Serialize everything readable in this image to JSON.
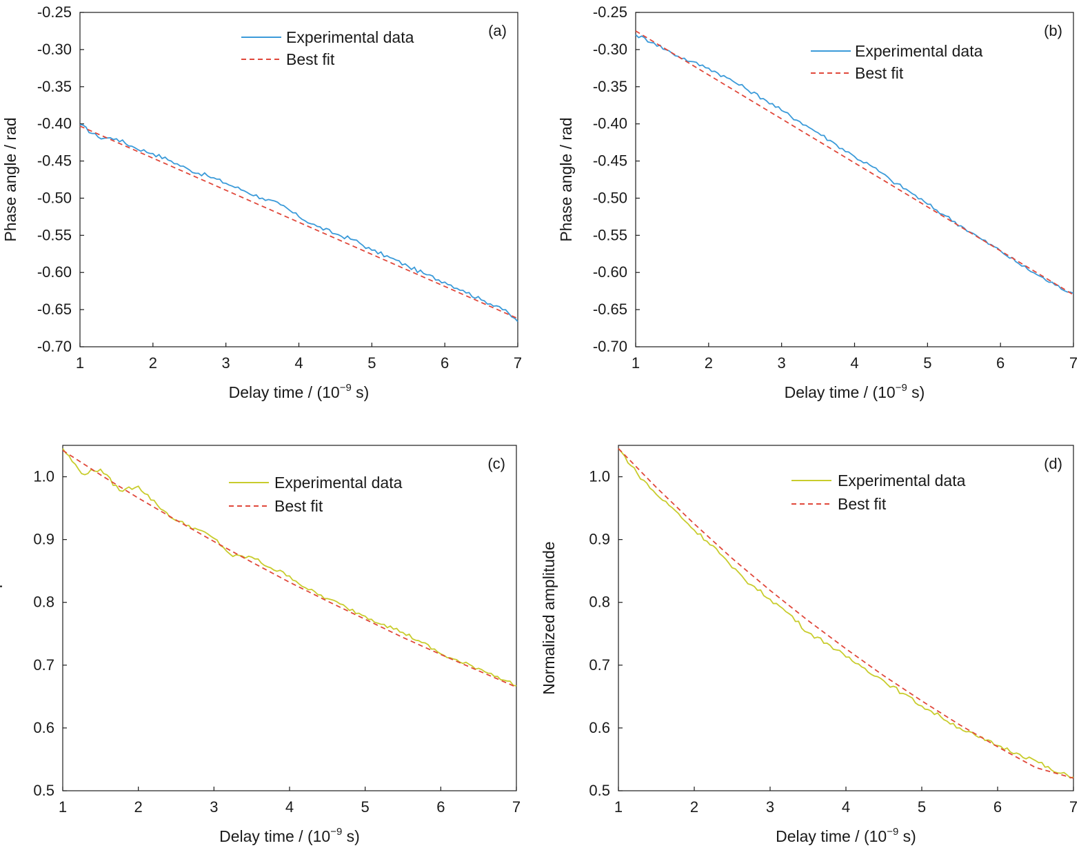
{
  "figure": {
    "colors": {
      "phase_series": "#3a9ad9",
      "amplitude_series": "#c8cc2c",
      "fit": "#e0473a",
      "axes": "#1a1a1a"
    }
  },
  "chart_data": [
    {
      "panel_label": "(a)",
      "type": "line",
      "xlabel": "Delay time / (10",
      "xlabel_exp": "−9",
      "xlabel_tail": " s)",
      "ylabel": "Phase angle / rad",
      "xlim": [
        1,
        7
      ],
      "ylim": [
        -0.7,
        -0.25
      ],
      "xticks": [
        1,
        2,
        3,
        4,
        5,
        6,
        7
      ],
      "xtick_labels": [
        "1",
        "2",
        "3",
        "4",
        "5",
        "6",
        "7"
      ],
      "yticks": [
        -0.25,
        -0.3,
        -0.35,
        -0.4,
        -0.45,
        -0.5,
        -0.55,
        -0.6,
        -0.65,
        -0.7
      ],
      "ytick_labels": [
        "-0.25",
        "-0.30",
        "-0.35",
        "-0.40",
        "-0.45",
        "-0.50",
        "-0.55",
        "-0.60",
        "-0.65",
        "-0.70"
      ],
      "legend_position": "top-right",
      "series": [
        {
          "name": "Experimental data",
          "style": "solid",
          "color_key": "phase_series",
          "x": [
            1.0,
            1.25,
            1.5,
            1.75,
            2.0,
            2.25,
            2.5,
            2.75,
            3.0,
            3.25,
            3.5,
            3.75,
            4.0,
            4.25,
            4.5,
            4.75,
            5.0,
            5.25,
            5.5,
            5.75,
            6.0,
            6.25,
            6.5,
            6.75,
            7.0
          ],
          "y": [
            -0.401,
            -0.418,
            -0.42,
            -0.432,
            -0.44,
            -0.45,
            -0.462,
            -0.47,
            -0.48,
            -0.49,
            -0.5,
            -0.509,
            -0.525,
            -0.538,
            -0.548,
            -0.556,
            -0.57,
            -0.58,
            -0.592,
            -0.603,
            -0.613,
            -0.624,
            -0.637,
            -0.646,
            -0.666
          ]
        },
        {
          "name": "Best fit",
          "style": "dashed",
          "color_key": "fit",
          "x": [
            1.0,
            7.0
          ],
          "y": [
            -0.403,
            -0.662
          ]
        }
      ]
    },
    {
      "panel_label": "(b)",
      "type": "line",
      "xlabel": "Delay time / (10",
      "xlabel_exp": "−9",
      "xlabel_tail": " s)",
      "ylabel": "Phase angle / rad",
      "xlim": [
        1,
        7
      ],
      "ylim": [
        -0.7,
        -0.25
      ],
      "xticks": [
        1,
        2,
        3,
        4,
        5,
        6,
        7
      ],
      "xtick_labels": [
        "1",
        "2",
        "3",
        "4",
        "5",
        "6",
        "7"
      ],
      "yticks": [
        -0.25,
        -0.3,
        -0.35,
        -0.4,
        -0.45,
        -0.5,
        -0.55,
        -0.6,
        -0.65,
        -0.7
      ],
      "ytick_labels": [
        "-0.25",
        "-0.30",
        "-0.35",
        "-0.40",
        "-0.45",
        "-0.50",
        "-0.55",
        "-0.60",
        "-0.65",
        "-0.70"
      ],
      "legend_position": "top-right",
      "series": [
        {
          "name": "Experimental data",
          "style": "solid",
          "color_key": "phase_series",
          "x": [
            1.0,
            1.25,
            1.5,
            1.75,
            2.0,
            2.25,
            2.5,
            2.75,
            3.0,
            3.25,
            3.5,
            3.75,
            4.0,
            4.25,
            4.5,
            4.75,
            5.0,
            5.25,
            5.5,
            5.75,
            6.0,
            6.25,
            6.5,
            6.75,
            7.0
          ],
          "y": [
            -0.28,
            -0.291,
            -0.305,
            -0.316,
            -0.325,
            -0.338,
            -0.352,
            -0.366,
            -0.382,
            -0.397,
            -0.412,
            -0.428,
            -0.444,
            -0.458,
            -0.476,
            -0.491,
            -0.508,
            -0.524,
            -0.54,
            -0.556,
            -0.571,
            -0.588,
            -0.603,
            -0.617,
            -0.628
          ]
        },
        {
          "name": "Best fit",
          "style": "dashed",
          "color_key": "fit",
          "x": [
            1.0,
            7.0
          ],
          "y": [
            -0.275,
            -0.63
          ]
        }
      ]
    },
    {
      "panel_label": "(c)",
      "type": "line",
      "xlabel": "Delay time / (10",
      "xlabel_exp": "−9",
      "xlabel_tail": " s)",
      "ylabel": "Normalized amplitude",
      "xlim": [
        1,
        7
      ],
      "ylim": [
        0.5,
        1.05
      ],
      "xticks": [
        1,
        2,
        3,
        4,
        5,
        6,
        7
      ],
      "xtick_labels": [
        "1",
        "2",
        "3",
        "4",
        "5",
        "6",
        "7"
      ],
      "yticks": [
        0.5,
        0.6,
        0.7,
        0.8,
        0.9,
        1.0
      ],
      "ytick_labels": [
        "0.5",
        "0.6",
        "0.7",
        "0.8",
        "0.9",
        "1.0"
      ],
      "legend_position": "top-right",
      "series": [
        {
          "name": "Experimental data",
          "style": "solid",
          "color_key": "amplitude_series",
          "x": [
            1.0,
            1.25,
            1.5,
            1.75,
            2.0,
            2.25,
            2.5,
            2.75,
            3.0,
            3.25,
            3.5,
            3.75,
            4.0,
            4.25,
            4.5,
            4.75,
            5.0,
            5.25,
            5.5,
            5.75,
            6.0,
            6.25,
            6.5,
            6.75,
            7.0
          ],
          "y": [
            1.045,
            1.005,
            1.012,
            0.978,
            0.985,
            0.955,
            0.93,
            0.918,
            0.902,
            0.873,
            0.872,
            0.855,
            0.842,
            0.82,
            0.806,
            0.792,
            0.778,
            0.765,
            0.752,
            0.736,
            0.718,
            0.705,
            0.695,
            0.682,
            0.667
          ]
        },
        {
          "name": "Best fit",
          "style": "dashed",
          "color_key": "fit",
          "x": [
            1.0,
            1.5,
            2.0,
            2.5,
            3.0,
            3.5,
            4.0,
            4.5,
            5.0,
            5.5,
            6.0,
            6.5,
            7.0
          ],
          "y": [
            1.042,
            1.003,
            0.966,
            0.931,
            0.897,
            0.864,
            0.832,
            0.802,
            0.773,
            0.744,
            0.717,
            0.691,
            0.665
          ]
        }
      ]
    },
    {
      "panel_label": "(d)",
      "type": "line",
      "xlabel": "Delay time / (10",
      "xlabel_exp": "−9",
      "xlabel_tail": " s)",
      "ylabel": "Normalized amplitude",
      "xlim": [
        1,
        7
      ],
      "ylim": [
        0.5,
        1.05
      ],
      "xticks": [
        1,
        2,
        3,
        4,
        5,
        6,
        7
      ],
      "xtick_labels": [
        "1",
        "2",
        "3",
        "4",
        "5",
        "6",
        "7"
      ],
      "yticks": [
        0.5,
        0.6,
        0.7,
        0.8,
        0.9,
        1.0
      ],
      "ytick_labels": [
        "0.5",
        "0.6",
        "0.7",
        "0.8",
        "0.9",
        "1.0"
      ],
      "legend_position": "top-right",
      "series": [
        {
          "name": "Experimental data",
          "style": "solid",
          "color_key": "amplitude_series",
          "x": [
            1.0,
            1.25,
            1.5,
            1.75,
            2.0,
            2.25,
            2.5,
            2.75,
            3.0,
            3.25,
            3.5,
            3.75,
            4.0,
            4.25,
            4.5,
            4.75,
            5.0,
            5.25,
            5.5,
            5.75,
            6.0,
            6.25,
            6.5,
            6.75,
            7.0
          ],
          "y": [
            1.045,
            1.005,
            0.972,
            0.946,
            0.915,
            0.89,
            0.855,
            0.828,
            0.805,
            0.782,
            0.752,
            0.735,
            0.713,
            0.695,
            0.675,
            0.655,
            0.635,
            0.618,
            0.6,
            0.585,
            0.572,
            0.56,
            0.548,
            0.53,
            0.522
          ]
        },
        {
          "name": "Best fit",
          "style": "dashed",
          "color_key": "fit",
          "x": [
            1.0,
            1.5,
            2.0,
            2.5,
            3.0,
            3.5,
            4.0,
            4.5,
            5.0,
            5.5,
            6.0,
            6.5,
            7.0
          ],
          "y": [
            1.045,
            0.983,
            0.925,
            0.87,
            0.819,
            0.771,
            0.726,
            0.683,
            0.643,
            0.605,
            0.57,
            0.537,
            0.52
          ]
        }
      ]
    }
  ]
}
